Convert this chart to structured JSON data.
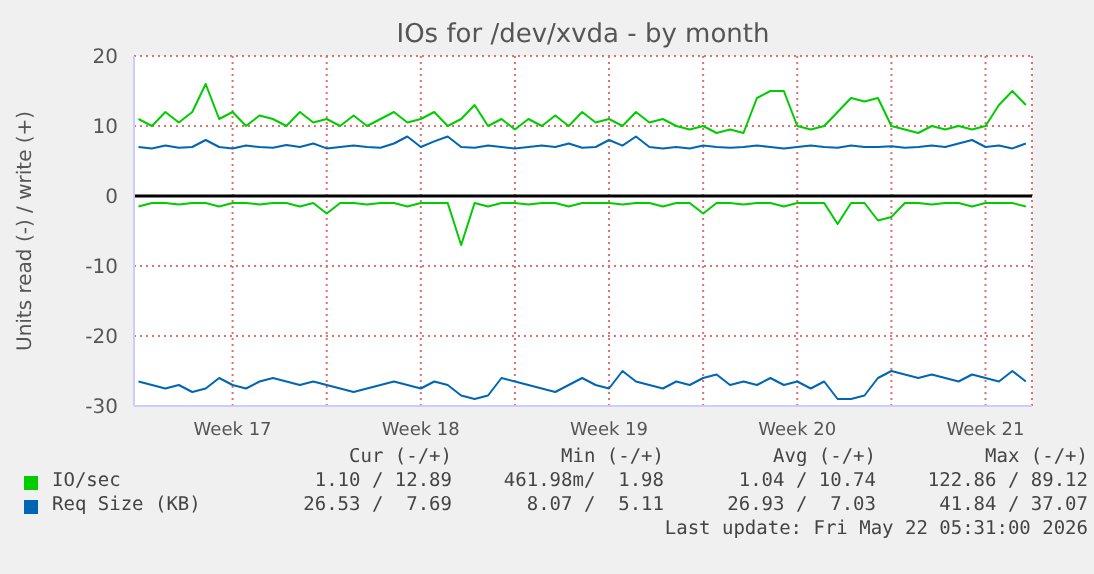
{
  "chart_data": {
    "type": "line",
    "title": "IOs for /dev/xvda - by month",
    "ylabel": "Units read (-) / write (+)",
    "x": [
      "2026-04-19T00:00",
      "2026-04-19T12:00",
      "2026-04-20T00:00",
      "2026-04-20T12:00",
      "2026-04-21T00:00",
      "2026-04-21T12:00",
      "2026-04-22T00:00",
      "2026-04-22T12:00",
      "2026-04-23T00:00",
      "2026-04-23T12:00",
      "2026-04-24T00:00",
      "2026-04-24T12:00",
      "2026-04-25T00:00",
      "2026-04-25T12:00",
      "2026-04-26T00:00",
      "2026-04-26T12:00",
      "2026-04-27T00:00",
      "2026-04-27T12:00",
      "2026-04-28T00:00",
      "2026-04-28T12:00",
      "2026-04-29T00:00",
      "2026-04-29T12:00",
      "2026-04-30T00:00",
      "2026-04-30T12:00",
      "2026-05-01T00:00",
      "2026-05-01T12:00",
      "2026-05-02T00:00",
      "2026-05-02T12:00",
      "2026-05-03T00:00",
      "2026-05-03T12:00",
      "2026-05-04T00:00",
      "2026-05-04T12:00",
      "2026-05-05T00:00",
      "2026-05-05T12:00",
      "2026-05-06T00:00",
      "2026-05-06T12:00",
      "2026-05-07T00:00",
      "2026-05-07T12:00",
      "2026-05-08T00:00",
      "2026-05-08T12:00",
      "2026-05-09T00:00",
      "2026-05-09T12:00",
      "2026-05-10T00:00",
      "2026-05-10T12:00",
      "2026-05-11T00:00",
      "2026-05-11T12:00",
      "2026-05-12T00:00",
      "2026-05-12T12:00",
      "2026-05-13T00:00",
      "2026-05-13T12:00",
      "2026-05-14T00:00",
      "2026-05-14T12:00",
      "2026-05-15T00:00",
      "2026-05-15T12:00",
      "2026-05-16T00:00",
      "2026-05-16T12:00",
      "2026-05-17T00:00",
      "2026-05-17T12:00",
      "2026-05-18T00:00",
      "2026-05-18T12:00",
      "2026-05-19T00:00",
      "2026-05-19T12:00",
      "2026-05-20T00:00",
      "2026-05-20T12:00",
      "2026-05-21T00:00",
      "2026-05-21T12:00",
      "2026-05-22T00:00"
    ],
    "series": [
      {
        "name": "IO/sec",
        "color": "#00cc00",
        "values": [
          11,
          10,
          12,
          10.5,
          12,
          16,
          11,
          12,
          10,
          11.5,
          11,
          10,
          12,
          10.5,
          11,
          10,
          11.5,
          10,
          11,
          12,
          10.5,
          11,
          12,
          10,
          11,
          13,
          10,
          11,
          9.5,
          11,
          10,
          11.5,
          10,
          12,
          10.5,
          11,
          10,
          12,
          10.5,
          11,
          10,
          9.5,
          10,
          9,
          9.5,
          9,
          14,
          15,
          15,
          10,
          9.5,
          10,
          12,
          14,
          13.5,
          14,
          10,
          9.5,
          9,
          10,
          9.5,
          10,
          9.5,
          10,
          13,
          15,
          13
        ]
      },
      {
        "color": "#00cc00",
        "values": [
          -1.5,
          -1,
          -1,
          -1.2,
          -1,
          -1,
          -1.5,
          -1,
          -1,
          -1.2,
          -1,
          -1,
          -1.5,
          -1,
          -2.5,
          -1,
          -1,
          -1.2,
          -1,
          -1,
          -1.5,
          -1,
          -1,
          -1,
          -7,
          -1,
          -1.5,
          -1,
          -1,
          -1.2,
          -1,
          -1,
          -1.5,
          -1,
          -1,
          -1,
          -1.2,
          -1,
          -1,
          -1.5,
          -1,
          -1,
          -2.5,
          -1,
          -1,
          -1.2,
          -1,
          -1,
          -1.5,
          -1,
          -1,
          -1,
          -4,
          -1,
          -1,
          -3.5,
          -3,
          -1,
          -1,
          -1.2,
          -1,
          -1,
          -1.5,
          -1,
          -1,
          -1,
          -1.5
        ]
      },
      {
        "name": "Req Size (KB)",
        "color": "#0066b3",
        "values": [
          7,
          6.8,
          7.2,
          6.9,
          7,
          8,
          7,
          6.8,
          7.2,
          7,
          6.9,
          7.3,
          7,
          7.5,
          6.8,
          7,
          7.2,
          7,
          6.9,
          7.5,
          8.5,
          7,
          7.8,
          8.5,
          7,
          6.9,
          7.2,
          7,
          6.8,
          7,
          7.2,
          7,
          7.5,
          6.9,
          7,
          8,
          7.2,
          8.5,
          7,
          6.8,
          7,
          6.8,
          7.2,
          7,
          6.9,
          7,
          7.2,
          7,
          6.8,
          7,
          7.2,
          7,
          6.9,
          7.2,
          7,
          7,
          7.1,
          6.9,
          7,
          7.2,
          7,
          7.5,
          8,
          7,
          7.2,
          6.8,
          7.5
        ]
      },
      {
        "color": "#0066b3",
        "values": [
          -26.5,
          -27,
          -27.5,
          -27,
          -28,
          -27.5,
          -26,
          -27,
          -27.5,
          -26.5,
          -26,
          -26.5,
          -27,
          -26.5,
          -27,
          -27.5,
          -28,
          -27.5,
          -27,
          -26.5,
          -27,
          -27.5,
          -26.5,
          -27,
          -28.5,
          -29,
          -28.5,
          -26,
          -26.5,
          -27,
          -27.5,
          -28,
          -27,
          -26,
          -27,
          -27.5,
          -25,
          -26.5,
          -27,
          -27.5,
          -26.5,
          -27,
          -26,
          -25.5,
          -27,
          -26.5,
          -27,
          -26,
          -27,
          -26.5,
          -27.5,
          -26.5,
          -29,
          -29,
          -28.5,
          -26,
          -25,
          -25.5,
          -26,
          -25.5,
          -26,
          -26.5,
          -25.5,
          -26,
          -26.5,
          -25,
          -26.5
        ]
      }
    ],
    "xlim": [
      "2026-04-18T20:00",
      "2026-05-22T05:30"
    ],
    "xticks": [
      {
        "value": "2026-04-22T12:00",
        "label": "Week 17"
      },
      {
        "value": "2026-04-26T00:00",
        "label": null
      },
      {
        "value": "2026-04-29T12:00",
        "label": "Week 18"
      },
      {
        "value": "2026-05-03T00:00",
        "label": null
      },
      {
        "value": "2026-05-06T12:00",
        "label": "Week 19"
      },
      {
        "value": "2026-05-10T00:00",
        "label": null
      },
      {
        "value": "2026-05-13T12:00",
        "label": "Week 20"
      },
      {
        "value": "2026-05-17T00:00",
        "label": null
      },
      {
        "value": "2026-05-20T12:00",
        "label": "Week 21"
      }
    ],
    "ylim": [
      -30,
      20
    ],
    "yticks": [
      -30,
      -20,
      -10,
      0,
      10,
      20
    ],
    "ref_lines": [
      {
        "axis": "y",
        "value": 0,
        "color": "#000000"
      }
    ],
    "grid": true,
    "legend": "bottom",
    "marker": "none",
    "line_style": "solid",
    "annotations": [
      "Cur (-/+)",
      "Min (-/+)",
      "Avg (-/+)",
      "Max (-/+)",
      "1.10 / 12.89",
      "461.98m/  1.98",
      "1.04 / 10.74",
      "122.86 / 89.12",
      "26.53 /  7.69",
      "8.07 /  5.11",
      "26.93 /  7.03",
      "41.84 / 37.07",
      "Last update: Fri May 22 05:31:00 2026"
    ]
  }
}
